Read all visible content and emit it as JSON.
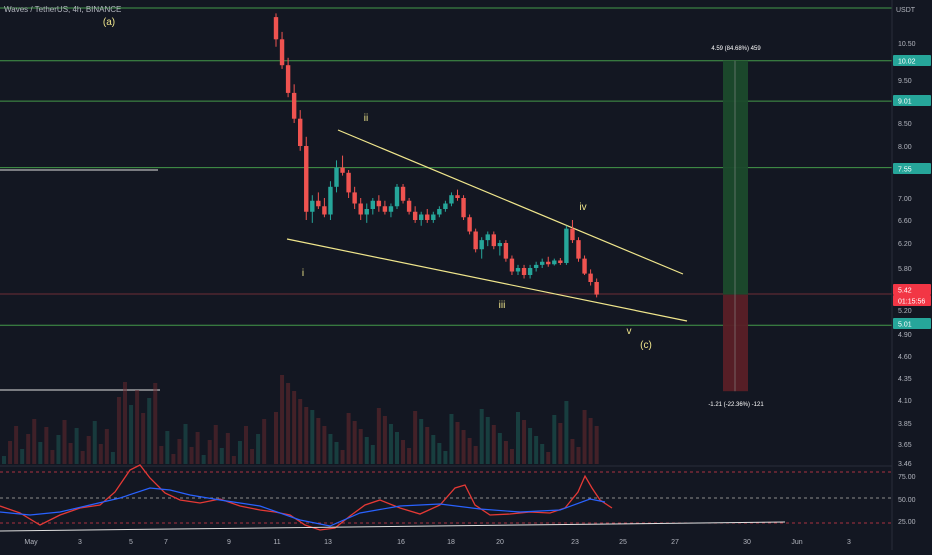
{
  "header": {
    "symbol_title": "Waves / TetherUS, 4h, BINANCE",
    "currency": "USDT"
  },
  "colors": {
    "background": "#131722",
    "up": "#26a69a",
    "down": "#ef5350",
    "level_line": "#4caf50",
    "trend_line": "#f0e68c",
    "wave_label": "#f0e68c",
    "rsi_line": "#e53935",
    "rsi_ma": "#2962ff",
    "axis_text": "#b2b5be",
    "price_tag_red": "#f23645",
    "price_tag_green": "#26a69a"
  },
  "chart_data": {
    "type": "candlestick",
    "price_axis": {
      "ticks": [
        "10.50",
        "9.50",
        "8.50",
        "8.00",
        "7.50",
        "7.00",
        "6.60",
        "6.20",
        "5.80",
        "5.20",
        "4.90",
        "4.60",
        "4.35",
        "4.10",
        "3.85",
        "3.65",
        "3.46"
      ],
      "currency": "USDT"
    },
    "time_axis": {
      "ticks": [
        "May",
        "3",
        "5",
        "7",
        "9",
        "11",
        "13",
        "16",
        "18",
        "20",
        "23",
        "25",
        "27",
        "30",
        "Jun",
        "3"
      ]
    },
    "price_tags": [
      {
        "label": "10.02",
        "style": "green"
      },
      {
        "label": "9.01",
        "style": "green"
      },
      {
        "label": "7.55",
        "style": "green"
      },
      {
        "label": "5.42",
        "style": "red"
      },
      {
        "label": "01:15:56",
        "style": "red"
      },
      {
        "label": "5.01",
        "style": "green"
      }
    ],
    "horizontal_levels": [
      10.02,
      9.01,
      7.55,
      5.01
    ],
    "wave_labels": [
      "(a)",
      "i",
      "ii",
      "iii",
      "iv",
      "v",
      "(c)"
    ],
    "position": {
      "entry": 5.42,
      "target": 10.02,
      "stop": 4.2,
      "target_label": "4.59 (84.68%) 459",
      "stop_label": "-1.21 (-22.36%) -121"
    },
    "candles": [
      [
        11.2,
        11.3,
        10.4,
        10.6
      ],
      [
        10.6,
        10.8,
        9.8,
        9.9
      ],
      [
        9.9,
        10.1,
        9.1,
        9.2
      ],
      [
        9.2,
        9.4,
        8.5,
        8.6
      ],
      [
        8.6,
        8.8,
        7.9,
        8.0
      ],
      [
        8.0,
        8.2,
        6.6,
        6.75
      ],
      [
        6.75,
        7.05,
        6.55,
        6.95
      ],
      [
        6.95,
        7.1,
        6.8,
        6.85
      ],
      [
        6.85,
        7.0,
        6.65,
        6.7
      ],
      [
        6.7,
        7.3,
        6.6,
        7.2
      ],
      [
        7.2,
        7.7,
        7.1,
        7.55
      ],
      [
        7.55,
        7.8,
        7.4,
        7.45
      ],
      [
        7.45,
        7.5,
        7.0,
        7.1
      ],
      [
        7.1,
        7.2,
        6.8,
        6.9
      ],
      [
        6.9,
        7.0,
        6.6,
        6.7
      ],
      [
        6.7,
        6.9,
        6.55,
        6.8
      ],
      [
        6.8,
        7.0,
        6.7,
        6.95
      ],
      [
        6.95,
        7.05,
        6.75,
        6.85
      ],
      [
        6.85,
        6.95,
        6.7,
        6.75
      ],
      [
        6.75,
        6.9,
        6.65,
        6.85
      ],
      [
        6.85,
        7.25,
        6.8,
        7.2
      ],
      [
        7.2,
        7.25,
        6.9,
        6.95
      ],
      [
        6.95,
        7.0,
        6.7,
        6.75
      ],
      [
        6.75,
        6.85,
        6.55,
        6.6
      ],
      [
        6.6,
        6.75,
        6.5,
        6.7
      ],
      [
        6.7,
        6.8,
        6.55,
        6.6
      ],
      [
        6.6,
        6.75,
        6.55,
        6.7
      ],
      [
        6.7,
        6.85,
        6.65,
        6.8
      ],
      [
        6.8,
        6.95,
        6.75,
        6.9
      ],
      [
        6.9,
        7.1,
        6.85,
        7.05
      ],
      [
        7.05,
        7.15,
        6.95,
        7.0
      ],
      [
        7.0,
        7.05,
        6.6,
        6.65
      ],
      [
        6.65,
        6.7,
        6.35,
        6.4
      ],
      [
        6.4,
        6.45,
        6.05,
        6.1
      ],
      [
        6.1,
        6.3,
        5.95,
        6.25
      ],
      [
        6.25,
        6.4,
        6.15,
        6.35
      ],
      [
        6.35,
        6.4,
        6.1,
        6.15
      ],
      [
        6.15,
        6.25,
        6.0,
        6.2
      ],
      [
        6.2,
        6.25,
        5.9,
        5.95
      ],
      [
        5.95,
        6.0,
        5.7,
        5.75
      ],
      [
        5.75,
        5.85,
        5.7,
        5.8
      ],
      [
        5.8,
        5.85,
        5.65,
        5.7
      ],
      [
        5.7,
        5.85,
        5.65,
        5.8
      ],
      [
        5.8,
        5.9,
        5.75,
        5.85
      ],
      [
        5.85,
        5.95,
        5.8,
        5.9
      ],
      [
        5.9,
        5.98,
        5.82,
        5.86
      ],
      [
        5.86,
        5.95,
        5.84,
        5.92
      ],
      [
        5.92,
        5.96,
        5.85,
        5.88
      ],
      [
        5.88,
        6.5,
        5.85,
        6.45
      ],
      [
        6.45,
        6.6,
        6.2,
        6.25
      ],
      [
        6.25,
        6.3,
        5.9,
        5.95
      ],
      [
        5.95,
        6.0,
        5.7,
        5.72
      ],
      [
        5.72,
        5.78,
        5.55,
        5.6
      ],
      [
        5.6,
        5.65,
        5.38,
        5.42
      ]
    ],
    "rsi": {
      "ticks": [
        "75.00",
        "50.00",
        "25.00"
      ],
      "levels": [
        70,
        50,
        30
      ]
    }
  }
}
